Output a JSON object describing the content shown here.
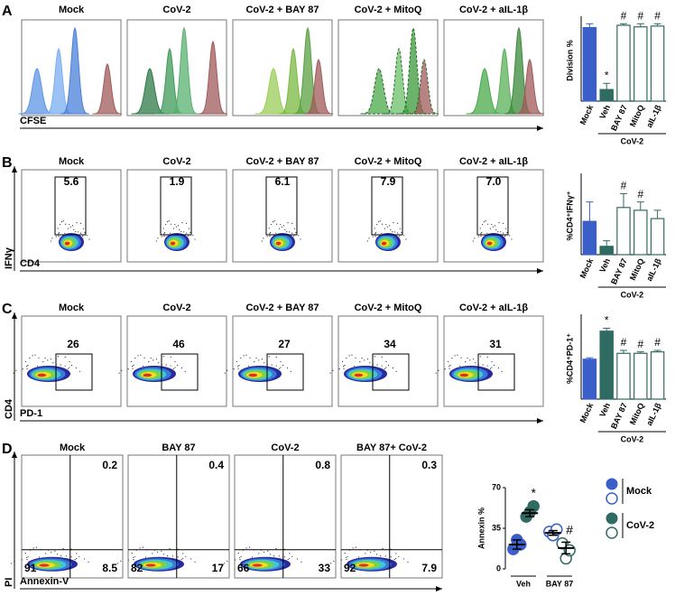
{
  "panels": [
    {
      "letter": "A",
      "x_label": "CFSE",
      "titles": [
        "Mock",
        "CoV-2",
        "CoV-2 + BAY 87",
        "CoV-2 + MitoQ",
        "CoV-2 + aIL-1β"
      ]
    },
    {
      "letter": "B",
      "y_label": "IFNγ",
      "x_label": "CD4",
      "titles": [
        "Mock",
        "CoV-2",
        "CoV-2 + BAY 87",
        "CoV-2 + MitoQ",
        "CoV-2 + aIL-1β"
      ],
      "gates": [
        "5.6",
        "1.9",
        "6.1",
        "7.9",
        "7.0"
      ]
    },
    {
      "letter": "C",
      "y_label": "CD4",
      "x_label": "PD-1",
      "titles": [
        "Mock",
        "CoV-2",
        "CoV-2 + BAY 87",
        "CoV-2 + MitoQ",
        "CoV-2 + aIL-1β"
      ],
      "gates": [
        "26",
        "46",
        "27",
        "34",
        "31"
      ]
    },
    {
      "letter": "D",
      "y_label": "PI",
      "x_label": "Annexin-V",
      "titles": [
        "Mock",
        "BAY 87",
        "CoV-2",
        "BAY 87+ CoV-2"
      ],
      "quadrants": [
        [
          "0.2",
          "91",
          "8.5"
        ],
        [
          "0.4",
          "82",
          "17"
        ],
        [
          "0.8",
          "66",
          "33"
        ],
        [
          "0.3",
          "92",
          "7.9"
        ]
      ]
    }
  ],
  "chart_data": [
    {
      "type": "bar",
      "y_label": "Division %",
      "categories": [
        "Mock",
        "Veh",
        "BAY 87",
        "MitoQ",
        "aIL-1β"
      ],
      "values": [
        95,
        15,
        98,
        96,
        97
      ],
      "errors": [
        5,
        8,
        2,
        4,
        3
      ],
      "colors": [
        "#3a5fc8",
        "#2f6b63",
        "#2f6b63",
        "#2f6b63",
        "#2f6b63"
      ],
      "filled": [
        true,
        true,
        false,
        false,
        false
      ],
      "markers": [
        null,
        "*",
        "#",
        "#",
        "#"
      ],
      "group_label": "CoV-2",
      "ylim": [
        0,
        105
      ]
    },
    {
      "type": "bar",
      "y_label": "%CD4⁺IFNγ⁺",
      "categories": [
        "Mock",
        "Veh",
        "BAY 87",
        "MitoQ",
        "aIL-1β"
      ],
      "values": [
        6,
        1.5,
        8.5,
        8,
        6.5
      ],
      "errors": [
        3.5,
        1,
        2.5,
        1.5,
        1.5
      ],
      "colors": [
        "#3a5fc8",
        "#2f6b63",
        "#2f6b63",
        "#2f6b63",
        "#2f6b63"
      ],
      "filled": [
        true,
        true,
        false,
        false,
        false
      ],
      "markers": [
        null,
        null,
        "#",
        "#",
        null
      ],
      "group_label": "CoV-2",
      "ylim": [
        0,
        14
      ]
    },
    {
      "type": "bar",
      "y_label": "%CD4⁺PD-1⁺",
      "categories": [
        "Mock",
        "Veh",
        "BAY 87",
        "MitoQ",
        "aIL-1β"
      ],
      "values": [
        27,
        46,
        31,
        31,
        32
      ],
      "errors": [
        1,
        2,
        2,
        1,
        1
      ],
      "colors": [
        "#3a5fc8",
        "#2f6b63",
        "#2f6b63",
        "#2f6b63",
        "#2f6b63"
      ],
      "filled": [
        true,
        true,
        false,
        false,
        false
      ],
      "markers": [
        null,
        "*",
        "#",
        "#",
        "#"
      ],
      "group_label": "CoV-2",
      "ylim": [
        0,
        55
      ]
    },
    {
      "type": "dot",
      "y_label": "Annexin %",
      "categories": [
        "Veh",
        "BAY 87"
      ],
      "ylim": [
        0,
        70
      ],
      "yticks": [
        0,
        35,
        70
      ],
      "series": [
        {
          "name": "Mock",
          "color": "#3a5fc8",
          "values": [
            [
              17,
              25,
              21
            ],
            [
              32,
              29,
              34
            ]
          ],
          "means": [
            21,
            31
          ],
          "errors": [
            4,
            2
          ]
        },
        {
          "name": "CoV-2",
          "color": "#2f6b63",
          "values": [
            [
              45,
              49,
              54
            ],
            [
              22,
              9,
              16
            ]
          ],
          "means": [
            48,
            18
          ],
          "errors": [
            3,
            5
          ]
        }
      ],
      "markers": [
        [
          null,
          null
        ],
        [
          "*",
          "#"
        ]
      ]
    }
  ]
}
